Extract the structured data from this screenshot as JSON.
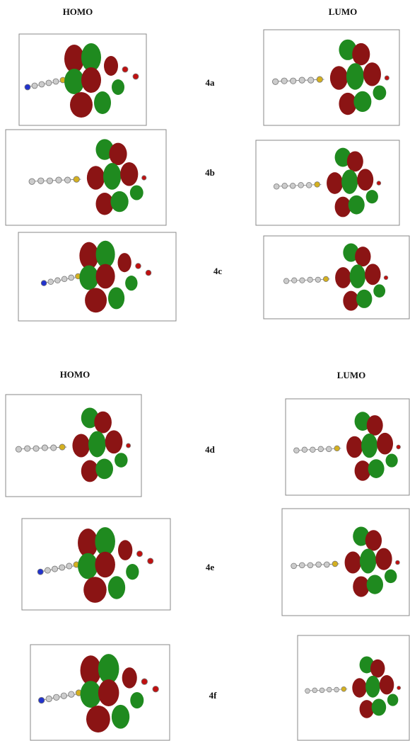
{
  "panels": [
    {
      "headers": [
        "HOMO",
        "LUMO"
      ],
      "rows": [
        "4a",
        "4b",
        "4c"
      ]
    },
    {
      "headers": [
        "HOMO",
        "LUMO"
      ],
      "rows": [
        "4d",
        "4e",
        "4f"
      ]
    }
  ]
}
